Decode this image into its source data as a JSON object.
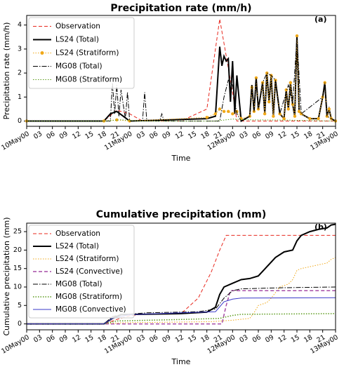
{
  "chart_data": [
    {
      "type": "line",
      "title": "Precipitation rate (mm/h)",
      "xlabel": "Time",
      "ylabel": "Precipitation rate (mm/h)",
      "annotation": "(a)",
      "xlim": [
        0,
        72
      ],
      "ylim": [
        -0.22,
        4.4
      ],
      "yticks": [
        0,
        1,
        2,
        3,
        4
      ],
      "xticks": [
        {
          "value": 0,
          "label": "10May00"
        },
        {
          "value": 3,
          "label": "03"
        },
        {
          "value": 6,
          "label": "06"
        },
        {
          "value": 9,
          "label": "09"
        },
        {
          "value": 12,
          "label": "12"
        },
        {
          "value": 15,
          "label": "15"
        },
        {
          "value": 18,
          "label": "18"
        },
        {
          "value": 21,
          "label": "21"
        },
        {
          "value": 24,
          "label": "11May00"
        },
        {
          "value": 27,
          "label": "03"
        },
        {
          "value": 30,
          "label": "06"
        },
        {
          "value": 33,
          "label": "09"
        },
        {
          "value": 36,
          "label": "12"
        },
        {
          "value": 39,
          "label": "15"
        },
        {
          "value": 42,
          "label": "18"
        },
        {
          "value": 45,
          "label": "21"
        },
        {
          "value": 48,
          "label": "12May00"
        },
        {
          "value": 51,
          "label": "03"
        },
        {
          "value": 54,
          "label": "06"
        },
        {
          "value": 57,
          "label": "09"
        },
        {
          "value": 60,
          "label": "12"
        },
        {
          "value": 63,
          "label": "15"
        },
        {
          "value": 66,
          "label": "18"
        },
        {
          "value": 69,
          "label": "21"
        },
        {
          "value": 72,
          "label": "13May00"
        }
      ],
      "legend": "upper left",
      "series": [
        {
          "name": "Observation",
          "color": "#e8281e",
          "linestyle": "dashed",
          "linewidth": 1,
          "marker": "none",
          "x": [
            0,
            18,
            21,
            24,
            27,
            36,
            42,
            45,
            48,
            49,
            72
          ],
          "values": [
            0,
            0,
            0.45,
            0.3,
            0,
            0,
            0.5,
            4.25,
            1.2,
            0,
            0
          ]
        },
        {
          "name": "LS24 (Total)",
          "color": "#000000",
          "linestyle": "solid",
          "linewidth": 2,
          "marker": "none",
          "x": [
            0,
            18,
            19.5,
            21,
            22.5,
            24,
            42,
            44,
            45,
            45.5,
            46,
            46.5,
            47,
            47.5,
            48,
            48.5,
            49,
            50,
            52,
            52.5,
            53,
            53.5,
            54,
            55,
            55.5,
            56,
            56.5,
            57,
            57.5,
            58,
            59,
            60,
            60.5,
            61,
            61.5,
            62,
            62.5,
            63,
            63.5,
            64,
            66,
            68,
            69,
            69.5,
            70,
            70.5,
            71,
            72
          ],
          "values": [
            0,
            0,
            0.3,
            0.4,
            0.2,
            0,
            0.1,
            0.2,
            3.1,
            2.3,
            2.7,
            2.5,
            2.6,
            0.8,
            2.5,
            0.3,
            1.9,
            0,
            0.2,
            1.5,
            0.4,
            1.8,
            0.5,
            1.6,
            0.3,
            2.0,
            0.8,
            1.9,
            0.2,
            1.7,
            0.3,
            0.1,
            1.3,
            0.5,
            1.6,
            0.7,
            0.2,
            3.55,
            0.4,
            0.3,
            0.1,
            0.1,
            1.0,
            1.6,
            0.2,
            0.5,
            0.1,
            0
          ]
        },
        {
          "name": "LS24 (Stratiform)",
          "color": "#f0a818",
          "linestyle": "dotted",
          "linewidth": 1,
          "marker": "o",
          "x": [
            0,
            18,
            21,
            24,
            42,
            44,
            45,
            46,
            47,
            48,
            49,
            50,
            52,
            52.5,
            53,
            53.5,
            54,
            55,
            55.5,
            56,
            56.5,
            57,
            57.5,
            58,
            59,
            60,
            60.5,
            61,
            61.5,
            62,
            62.5,
            63,
            63.5,
            64,
            66,
            68,
            69,
            69.5,
            70,
            70.5,
            71,
            72
          ],
          "values": [
            0,
            0,
            0.05,
            0,
            0.15,
            0.3,
            0.5,
            0.4,
            0.4,
            0.3,
            0.4,
            0.1,
            0.2,
            1.4,
            0.4,
            1.8,
            0.5,
            1.6,
            0.3,
            2.0,
            0.8,
            1.9,
            0.2,
            1.7,
            0.3,
            0.1,
            1.3,
            0.5,
            1.6,
            0.7,
            0.2,
            3.55,
            0.4,
            0.3,
            0.1,
            0.1,
            1.0,
            1.6,
            0.2,
            0.5,
            0.1,
            0
          ]
        },
        {
          "name": "MG08 (Total)",
          "color": "#000000",
          "linestyle": "dashdot",
          "linewidth": 1,
          "marker": "none",
          "x": [
            0,
            19.5,
            20,
            20.5,
            21,
            21.5,
            22,
            23,
            23.5,
            24,
            27,
            27.5,
            28,
            31,
            31.5,
            32,
            45,
            46,
            47,
            48,
            49,
            50,
            52,
            52.5,
            53,
            53.5,
            54,
            55,
            56,
            57,
            58,
            59,
            61,
            62,
            63,
            64,
            69,
            69.5,
            70,
            72
          ],
          "values": [
            0,
            0,
            1.6,
            0.3,
            1.5,
            0.2,
            1.3,
            0.1,
            1.2,
            0,
            0,
            1.2,
            0,
            0,
            0.3,
            0,
            0,
            1.0,
            1.7,
            1.5,
            0.3,
            0,
            0.2,
            1.5,
            0.4,
            1.8,
            0.5,
            1.6,
            2.0,
            1.9,
            1.7,
            0.3,
            1.5,
            0.7,
            3.5,
            0.3,
            1.0,
            1.6,
            0.2,
            0
          ]
        },
        {
          "name": "MG08 (Stratiform)",
          "color": "#5a9a1a",
          "linestyle": "dotted",
          "linewidth": 1,
          "marker": "none",
          "x": [
            0,
            18,
            22,
            26,
            44,
            48,
            52,
            60,
            72
          ],
          "values": [
            0,
            0,
            0.05,
            0,
            0,
            0.08,
            0.05,
            0.04,
            0
          ]
        }
      ]
    },
    {
      "type": "line",
      "title": "Cumulative precipitation (mm)",
      "xlabel": "Time",
      "ylabel": "Cumulative precipitation (mm)",
      "annotation": "(b)",
      "xlim": [
        0,
        72
      ],
      "ylim": [
        -1.6,
        27.3
      ],
      "yticks": [
        0,
        5,
        10,
        15,
        20,
        25
      ],
      "xticks": [
        {
          "value": 0,
          "label": "10May00"
        },
        {
          "value": 3,
          "label": "03"
        },
        {
          "value": 6,
          "label": "06"
        },
        {
          "value": 9,
          "label": "09"
        },
        {
          "value": 12,
          "label": "12"
        },
        {
          "value": 15,
          "label": "15"
        },
        {
          "value": 18,
          "label": "18"
        },
        {
          "value": 21,
          "label": "21"
        },
        {
          "value": 24,
          "label": "11May00"
        },
        {
          "value": 27,
          "label": "03"
        },
        {
          "value": 30,
          "label": "06"
        },
        {
          "value": 33,
          "label": "09"
        },
        {
          "value": 36,
          "label": "12"
        },
        {
          "value": 39,
          "label": "15"
        },
        {
          "value": 42,
          "label": "18"
        },
        {
          "value": 45,
          "label": "21"
        },
        {
          "value": 48,
          "label": "12May00"
        },
        {
          "value": 51,
          "label": "03"
        },
        {
          "value": 54,
          "label": "06"
        },
        {
          "value": 57,
          "label": "09"
        },
        {
          "value": 60,
          "label": "12"
        },
        {
          "value": 63,
          "label": "15"
        },
        {
          "value": 66,
          "label": "18"
        },
        {
          "value": 69,
          "label": "21"
        },
        {
          "value": 72,
          "label": "13May00"
        }
      ],
      "legend": "upper left",
      "series": [
        {
          "name": "Observation",
          "color": "#e8281e",
          "linestyle": "dashed",
          "linewidth": 1,
          "marker": "none",
          "x": [
            0,
            18,
            21,
            24,
            27,
            36,
            40,
            43,
            45,
            46.5,
            72
          ],
          "values": [
            0,
            0,
            1.2,
            2.2,
            2.6,
            2.8,
            7,
            14,
            20,
            24,
            24
          ]
        },
        {
          "name": "LS24 (Total)",
          "color": "#000000",
          "linestyle": "solid",
          "linewidth": 2,
          "marker": "none",
          "x": [
            0,
            18,
            20,
            22,
            36,
            42,
            44,
            45,
            46,
            48,
            50,
            52,
            54,
            56,
            58,
            60,
            62,
            63,
            64,
            66,
            68,
            70,
            71,
            72
          ],
          "values": [
            0,
            0,
            1.5,
            2.5,
            2.8,
            3.2,
            4.5,
            8,
            10,
            11,
            12,
            12.3,
            13,
            15.5,
            18,
            19.5,
            20,
            22.5,
            24,
            25,
            25.6,
            26,
            26.8,
            27
          ]
        },
        {
          "name": "LS24 (Stratiform)",
          "color": "#f0a818",
          "linestyle": "dotted",
          "linewidth": 1,
          "marker": "none",
          "x": [
            0,
            18,
            22,
            43,
            48,
            52,
            53,
            54,
            56,
            57,
            59,
            61,
            62,
            63,
            64,
            66,
            68,
            70,
            71,
            72
          ],
          "values": [
            0,
            0,
            0.3,
            0.6,
            1,
            1.5,
            3,
            5,
            5.8,
            7,
            10,
            10.8,
            12,
            14.5,
            15,
            15.5,
            16,
            16.5,
            17.5,
            18
          ]
        },
        {
          "name": "LS24 (Convective)",
          "color": "#a64ca6",
          "linestyle": "dashed",
          "linewidth": 1.5,
          "marker": "none",
          "x": [
            0,
            45.5,
            46.5,
            47.5,
            72
          ],
          "values": [
            0,
            0,
            5,
            9,
            9
          ]
        },
        {
          "name": "MG08 (Total)",
          "color": "#000000",
          "linestyle": "dashdot",
          "linewidth": 1,
          "marker": "none",
          "x": [
            0,
            18,
            20,
            22,
            28,
            40,
            44,
            46,
            48,
            50,
            60,
            72
          ],
          "values": [
            0,
            0,
            2,
            2.5,
            3,
            3.3,
            4,
            7,
            9,
            9.5,
            9.8,
            10
          ]
        },
        {
          "name": "MG08 (Stratiform)",
          "color": "#5a9a1a",
          "linestyle": "dotted",
          "linewidth": 1.5,
          "marker": "none",
          "x": [
            0,
            18,
            21,
            36,
            45,
            48,
            50,
            72
          ],
          "values": [
            0,
            0,
            0.8,
            1.2,
            1.5,
            2.3,
            2.6,
            2.8
          ]
        },
        {
          "name": "MG08 (Convective)",
          "color": "#3a3ac8",
          "linestyle": "solid",
          "linewidth": 1,
          "marker": "none",
          "x": [
            0,
            18,
            20,
            24,
            36,
            44,
            46,
            48,
            50,
            72
          ],
          "values": [
            0,
            0,
            1.5,
            2.5,
            3,
            3.3,
            6,
            6.7,
            7,
            7.1
          ]
        }
      ]
    }
  ]
}
